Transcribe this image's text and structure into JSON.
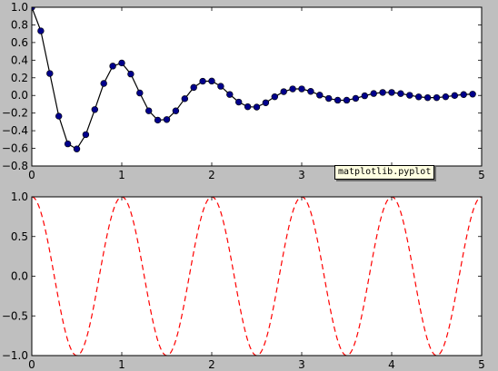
{
  "tooltip": {
    "text": "matplotlib.pyplot"
  },
  "colors": {
    "figure_bg": "#bfbfbf",
    "axes_bg": "#ffffff",
    "top_line": "#000000",
    "top_marker": "#00008b",
    "bottom_line": "#ff0000"
  },
  "chart_data": [
    {
      "type": "line",
      "title": "",
      "xlabel": "",
      "ylabel": "",
      "xlim": [
        0,
        5
      ],
      "ylim": [
        -0.8,
        1.0
      ],
      "grid": false,
      "xticks": [
        0,
        1,
        2,
        3,
        4,
        5
      ],
      "xtick_labels": [
        "0",
        "1",
        "2",
        "3",
        "4",
        "5"
      ],
      "yticks": [
        -0.8,
        -0.6,
        -0.4,
        -0.2,
        0.0,
        0.2,
        0.4,
        0.6,
        0.8,
        1.0
      ],
      "ytick_labels": [
        "−0.8",
        "−0.6",
        "−0.4",
        "−0.2",
        "0.0",
        "0.2",
        "0.4",
        "0.6",
        "0.8",
        "1.0"
      ],
      "series": [
        {
          "style": "solid line with circle markers",
          "line_color": "#000000",
          "marker_color": "#00008b",
          "x": [
            0.0,
            0.1,
            0.2,
            0.3,
            0.4,
            0.5,
            0.6,
            0.7,
            0.8,
            0.9,
            1.0,
            1.1,
            1.2,
            1.3,
            1.4,
            1.5,
            1.6,
            1.7,
            1.8,
            1.9,
            2.0,
            2.1,
            2.2,
            2.3,
            2.4,
            2.5,
            2.6,
            2.7,
            2.8,
            2.9,
            3.0,
            3.1,
            3.2,
            3.3,
            3.4,
            3.5,
            3.6,
            3.7,
            3.8,
            3.9,
            4.0,
            4.1,
            4.2,
            4.3,
            4.4,
            4.5,
            4.6,
            4.7,
            4.8,
            4.9
          ],
          "y": [
            1.0,
            0.732,
            0.249,
            -0.235,
            -0.549,
            -0.607,
            -0.444,
            -0.16,
            0.136,
            0.333,
            0.368,
            0.243,
            0.028,
            -0.174,
            -0.28,
            -0.273,
            -0.175,
            -0.037,
            0.091,
            0.161,
            0.163,
            0.104,
            0.011,
            -0.075,
            -0.128,
            -0.132,
            -0.083,
            -0.015,
            0.043,
            0.074,
            0.074,
            0.046,
            0.004,
            -0.034,
            -0.054,
            -0.054,
            -0.033,
            -0.004,
            0.022,
            0.034,
            0.034,
            0.021,
            0.002,
            -0.016,
            -0.025,
            -0.025,
            -0.015,
            -0.001,
            0.01,
            0.015
          ]
        }
      ]
    },
    {
      "type": "line",
      "title": "",
      "xlabel": "",
      "ylabel": "",
      "xlim": [
        0,
        5
      ],
      "ylim": [
        -1.0,
        1.0
      ],
      "grid": false,
      "xticks": [
        0,
        1,
        2,
        3,
        4,
        5
      ],
      "xtick_labels": [
        "0",
        "1",
        "2",
        "3",
        "4",
        "5"
      ],
      "yticks": [
        -1.0,
        -0.5,
        0.0,
        0.5,
        1.0
      ],
      "ytick_labels": [
        "−1.0",
        "−0.5",
        "0.0",
        "0.5",
        "1.0"
      ],
      "series": [
        {
          "style": "red dashed line",
          "line_color": "#ff0000",
          "function": "cos(2*pi*x)",
          "x_start": 0,
          "x_end": 5
        }
      ]
    }
  ]
}
